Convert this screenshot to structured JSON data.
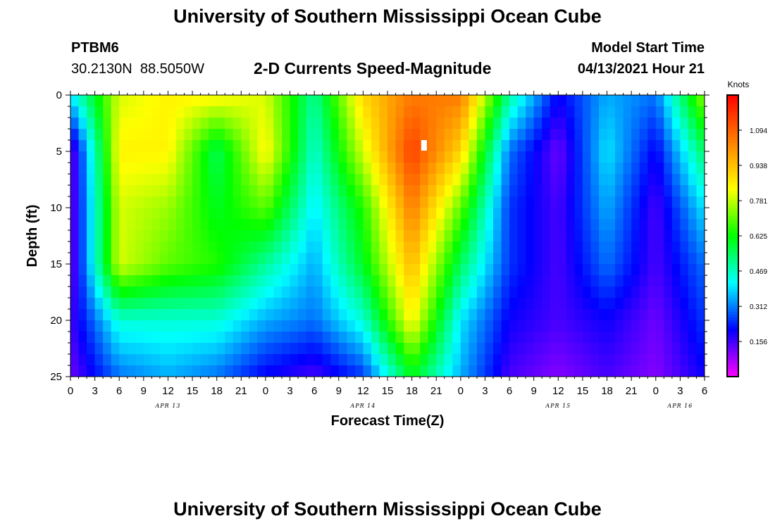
{
  "page": {
    "title_top": "University of Southern Mississippi Ocean Cube",
    "title_bottom": "University of Southern Mississippi Ocean Cube",
    "station_id": "PTBM6",
    "station_coords": "30.2130N  88.5050W",
    "plot_title": "2-D Currents Speed-Magnitude",
    "model_start_label": "Model Start Time",
    "model_start_value": "04/13/2021 Hour 21"
  },
  "chart_data": {
    "type": "heatmap",
    "title": "2-D Currents Speed-Magnitude",
    "xlabel": "Forecast Time(Z)",
    "ylabel": "Depth (ft)",
    "x_tick_labels": [
      "0",
      "3",
      "6",
      "9",
      "12",
      "15",
      "18",
      "21",
      "0",
      "3",
      "6",
      "9",
      "12",
      "15",
      "18",
      "21",
      "0",
      "3",
      "6",
      "9",
      "12",
      "15",
      "18",
      "21",
      "0",
      "3",
      "6"
    ],
    "x_range_hours": [
      0,
      78
    ],
    "date_labels": [
      {
        "label": "APR 13",
        "hour": 12
      },
      {
        "label": "APR 14",
        "hour": 36
      },
      {
        "label": "APR 15",
        "hour": 60
      },
      {
        "label": "APR 16",
        "hour": 75
      }
    ],
    "y_ticks": [
      0,
      5,
      10,
      15,
      20,
      25
    ],
    "ylim": [
      0,
      25
    ],
    "y_inverted": true,
    "colorbar": {
      "unit": "Knots",
      "labels": [
        "1.094",
        "0.938",
        "0.781",
        "0.625",
        "0.469",
        "0.312",
        "0.156"
      ],
      "range": [
        0.0,
        1.25
      ],
      "colors": [
        "#ff00ff",
        "#8000ff",
        "#0000ff",
        "#0080ff",
        "#00ffff",
        "#00ff80",
        "#00ff00",
        "#80ff00",
        "#ffff00",
        "#ffc000",
        "#ff8000",
        "#ff4000",
        "#ff0000"
      ]
    },
    "grid": {
      "hours": [
        0,
        6,
        12,
        18,
        24,
        30,
        36,
        42,
        48,
        54,
        60,
        66,
        72,
        78
      ],
      "depths": [
        0,
        5,
        10,
        15,
        20,
        25
      ],
      "values": [
        [
          0.4,
          0.8,
          0.85,
          0.85,
          0.8,
          0.5,
          0.9,
          1.05,
          1.05,
          0.5,
          0.2,
          0.35,
          0.3,
          0.75
        ],
        [
          0.1,
          0.85,
          0.85,
          0.55,
          0.85,
          0.45,
          0.8,
          1.15,
          0.9,
          0.3,
          0.12,
          0.4,
          0.2,
          0.55
        ],
        [
          0.1,
          0.8,
          0.75,
          0.6,
          0.7,
          0.4,
          0.65,
          1.05,
          0.7,
          0.25,
          0.15,
          0.35,
          0.15,
          0.4
        ],
        [
          0.1,
          0.8,
          0.7,
          0.65,
          0.5,
          0.35,
          0.6,
          0.95,
          0.55,
          0.25,
          0.15,
          0.3,
          0.15,
          0.3
        ],
        [
          0.15,
          0.45,
          0.45,
          0.45,
          0.35,
          0.3,
          0.45,
          0.85,
          0.4,
          0.2,
          0.15,
          0.2,
          0.12,
          0.25
        ],
        [
          0.12,
          0.3,
          0.35,
          0.3,
          0.2,
          0.15,
          0.25,
          0.6,
          0.35,
          0.15,
          0.1,
          0.15,
          0.1,
          0.2
        ]
      ]
    },
    "annotation": {
      "type": "marker",
      "hour": 43.5,
      "depth": 4.5
    }
  }
}
